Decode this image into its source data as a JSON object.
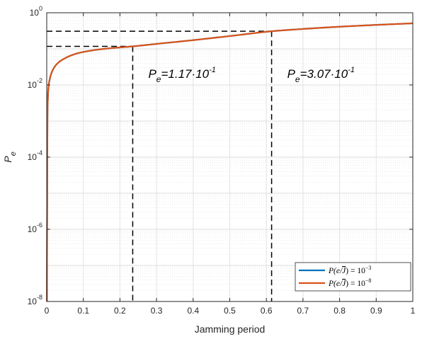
{
  "chart_data": {
    "type": "line",
    "xlabel": "Jamming period",
    "ylabel": "P",
    "ylabel_sub": "e",
    "xlim": [
      0,
      1
    ],
    "ylim": [
      1e-08,
      1
    ],
    "yscale": "log",
    "grid": true,
    "minor_grid": true,
    "x_ticks": [
      "0",
      "0.1",
      "0.2",
      "0.3",
      "0.4",
      "0.5",
      "0.6",
      "0.7",
      "0.8",
      "0.9",
      "1"
    ],
    "y_ticks": [
      {
        "value": 1e-08,
        "base": "10",
        "exp": "-8"
      },
      {
        "value": 1e-06,
        "base": "10",
        "exp": "-6"
      },
      {
        "value": 0.0001,
        "base": "10",
        "exp": "-4"
      },
      {
        "value": 0.01,
        "base": "10",
        "exp": "-2"
      },
      {
        "value": 1,
        "base": "10",
        "exp": "0"
      }
    ],
    "legend_position": "bottom-right",
    "series": [
      {
        "name": "P(e/J̄) = 10⁻³",
        "legend": {
          "lhs": "P(e/",
          "bar": "J",
          "rhs": ") = 10",
          "exp": "−3"
        },
        "color": "#0072BD",
        "x": [
          0.0005,
          0.001,
          0.002,
          0.003,
          0.005,
          0.008,
          0.012,
          0.02,
          0.03,
          0.05,
          0.08,
          0.12,
          0.17,
          0.2349,
          0.3,
          0.4,
          0.5,
          0.6143,
          0.7,
          0.8,
          0.9,
          1.0
        ],
        "y": [
          1e-08,
          1e-06,
          0.001,
          0.004,
          0.009,
          0.014,
          0.02,
          0.03,
          0.04,
          0.055,
          0.073,
          0.089,
          0.103,
          0.117,
          0.137,
          0.174,
          0.226,
          0.307,
          0.355,
          0.41,
          0.46,
          0.51
        ]
      },
      {
        "name": "P(e/J̄) = 10⁻⁸",
        "legend": {
          "lhs": "P(e/",
          "bar": "J",
          "rhs": ") = 10",
          "exp": "−8"
        },
        "color": "#D95319",
        "x": [
          0.0005,
          0.001,
          0.002,
          0.003,
          0.005,
          0.008,
          0.012,
          0.02,
          0.03,
          0.05,
          0.08,
          0.12,
          0.17,
          0.2349,
          0.3,
          0.4,
          0.5,
          0.6143,
          0.7,
          0.8,
          0.9,
          1.0
        ],
        "y": [
          1e-08,
          1e-06,
          0.001,
          0.004,
          0.009,
          0.014,
          0.02,
          0.03,
          0.04,
          0.055,
          0.073,
          0.089,
          0.103,
          0.117,
          0.137,
          0.174,
          0.226,
          0.307,
          0.355,
          0.41,
          0.46,
          0.51
        ]
      }
    ],
    "annotations": [
      {
        "x": 0.2349,
        "y": 0.117,
        "label_base": "P",
        "label_sub": "e",
        "label_mid": "=1.17·10",
        "label_exp": "-1"
      },
      {
        "x": 0.6143,
        "y": 0.307,
        "label_base": "P",
        "label_sub": "e",
        "label_mid": "=3.07·10",
        "label_exp": "-1"
      }
    ]
  }
}
